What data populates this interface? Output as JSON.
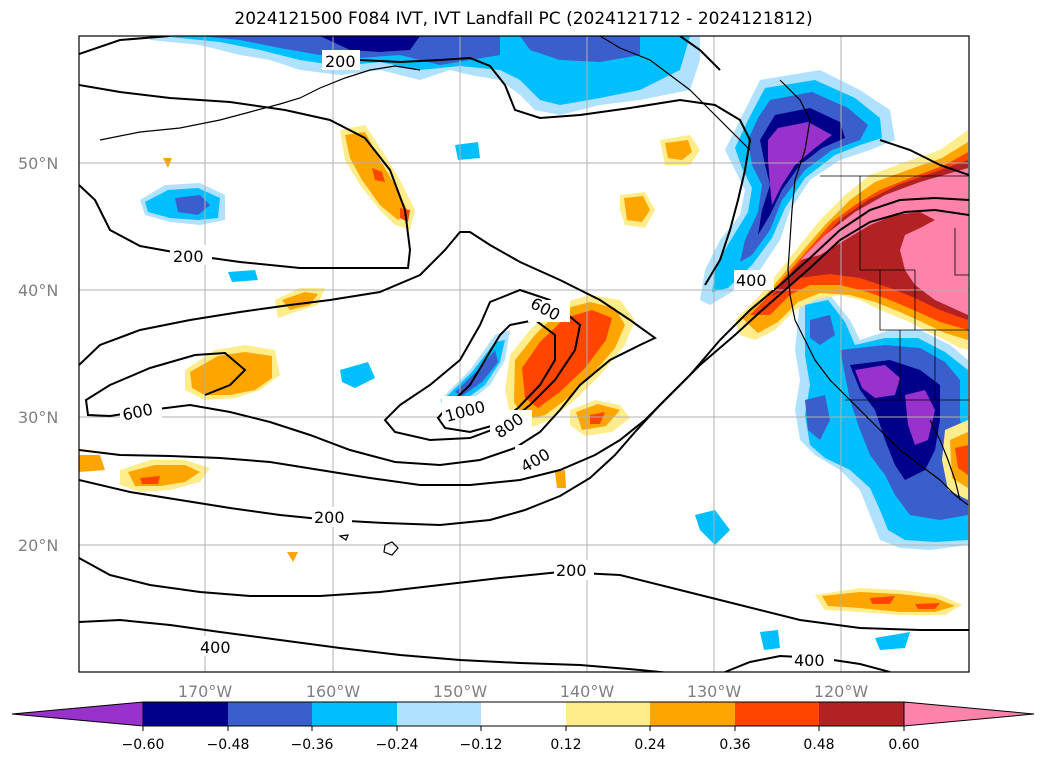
{
  "title": "2024121500 F084 IVT, IVT Landfall PC (2024121712 - 2024121812)",
  "latitude_labels": [
    "50°N",
    "40°N",
    "30°N",
    "20°N"
  ],
  "longitude_labels": [
    "170°W",
    "160°W",
    "150°W",
    "140°W",
    "130°W",
    "120°W"
  ],
  "contour_labels": [
    "200",
    "200",
    "600",
    "600",
    "1000",
    "800",
    "400",
    "400",
    "200",
    "200",
    "400",
    "400"
  ],
  "colorbar": {
    "ticks": [
      "−0.60",
      "−0.48",
      "−0.36",
      "−0.24",
      "−0.12",
      "0.12",
      "0.24",
      "0.36",
      "0.48",
      "0.60"
    ],
    "colors": [
      "#9932cc",
      "#00008b",
      "#3a5fcd",
      "#00bfff",
      "#b0e2ff",
      "#ffffff",
      "#ffec8b",
      "#ffa500",
      "#ff4500",
      "#b22222",
      "#ff82ab"
    ]
  },
  "colors": {
    "neg_strong": "#9932cc",
    "neg_dark": "#00008b",
    "neg_mid": "#3a5fcd",
    "neg_light": "#00bfff",
    "neg_pale": "#b0e2ff",
    "pos_pale": "#ffec8b",
    "pos_light": "#ffa500",
    "pos_mid": "#ff4500",
    "pos_dark": "#b22222",
    "pos_strong": "#ff82ab"
  }
}
